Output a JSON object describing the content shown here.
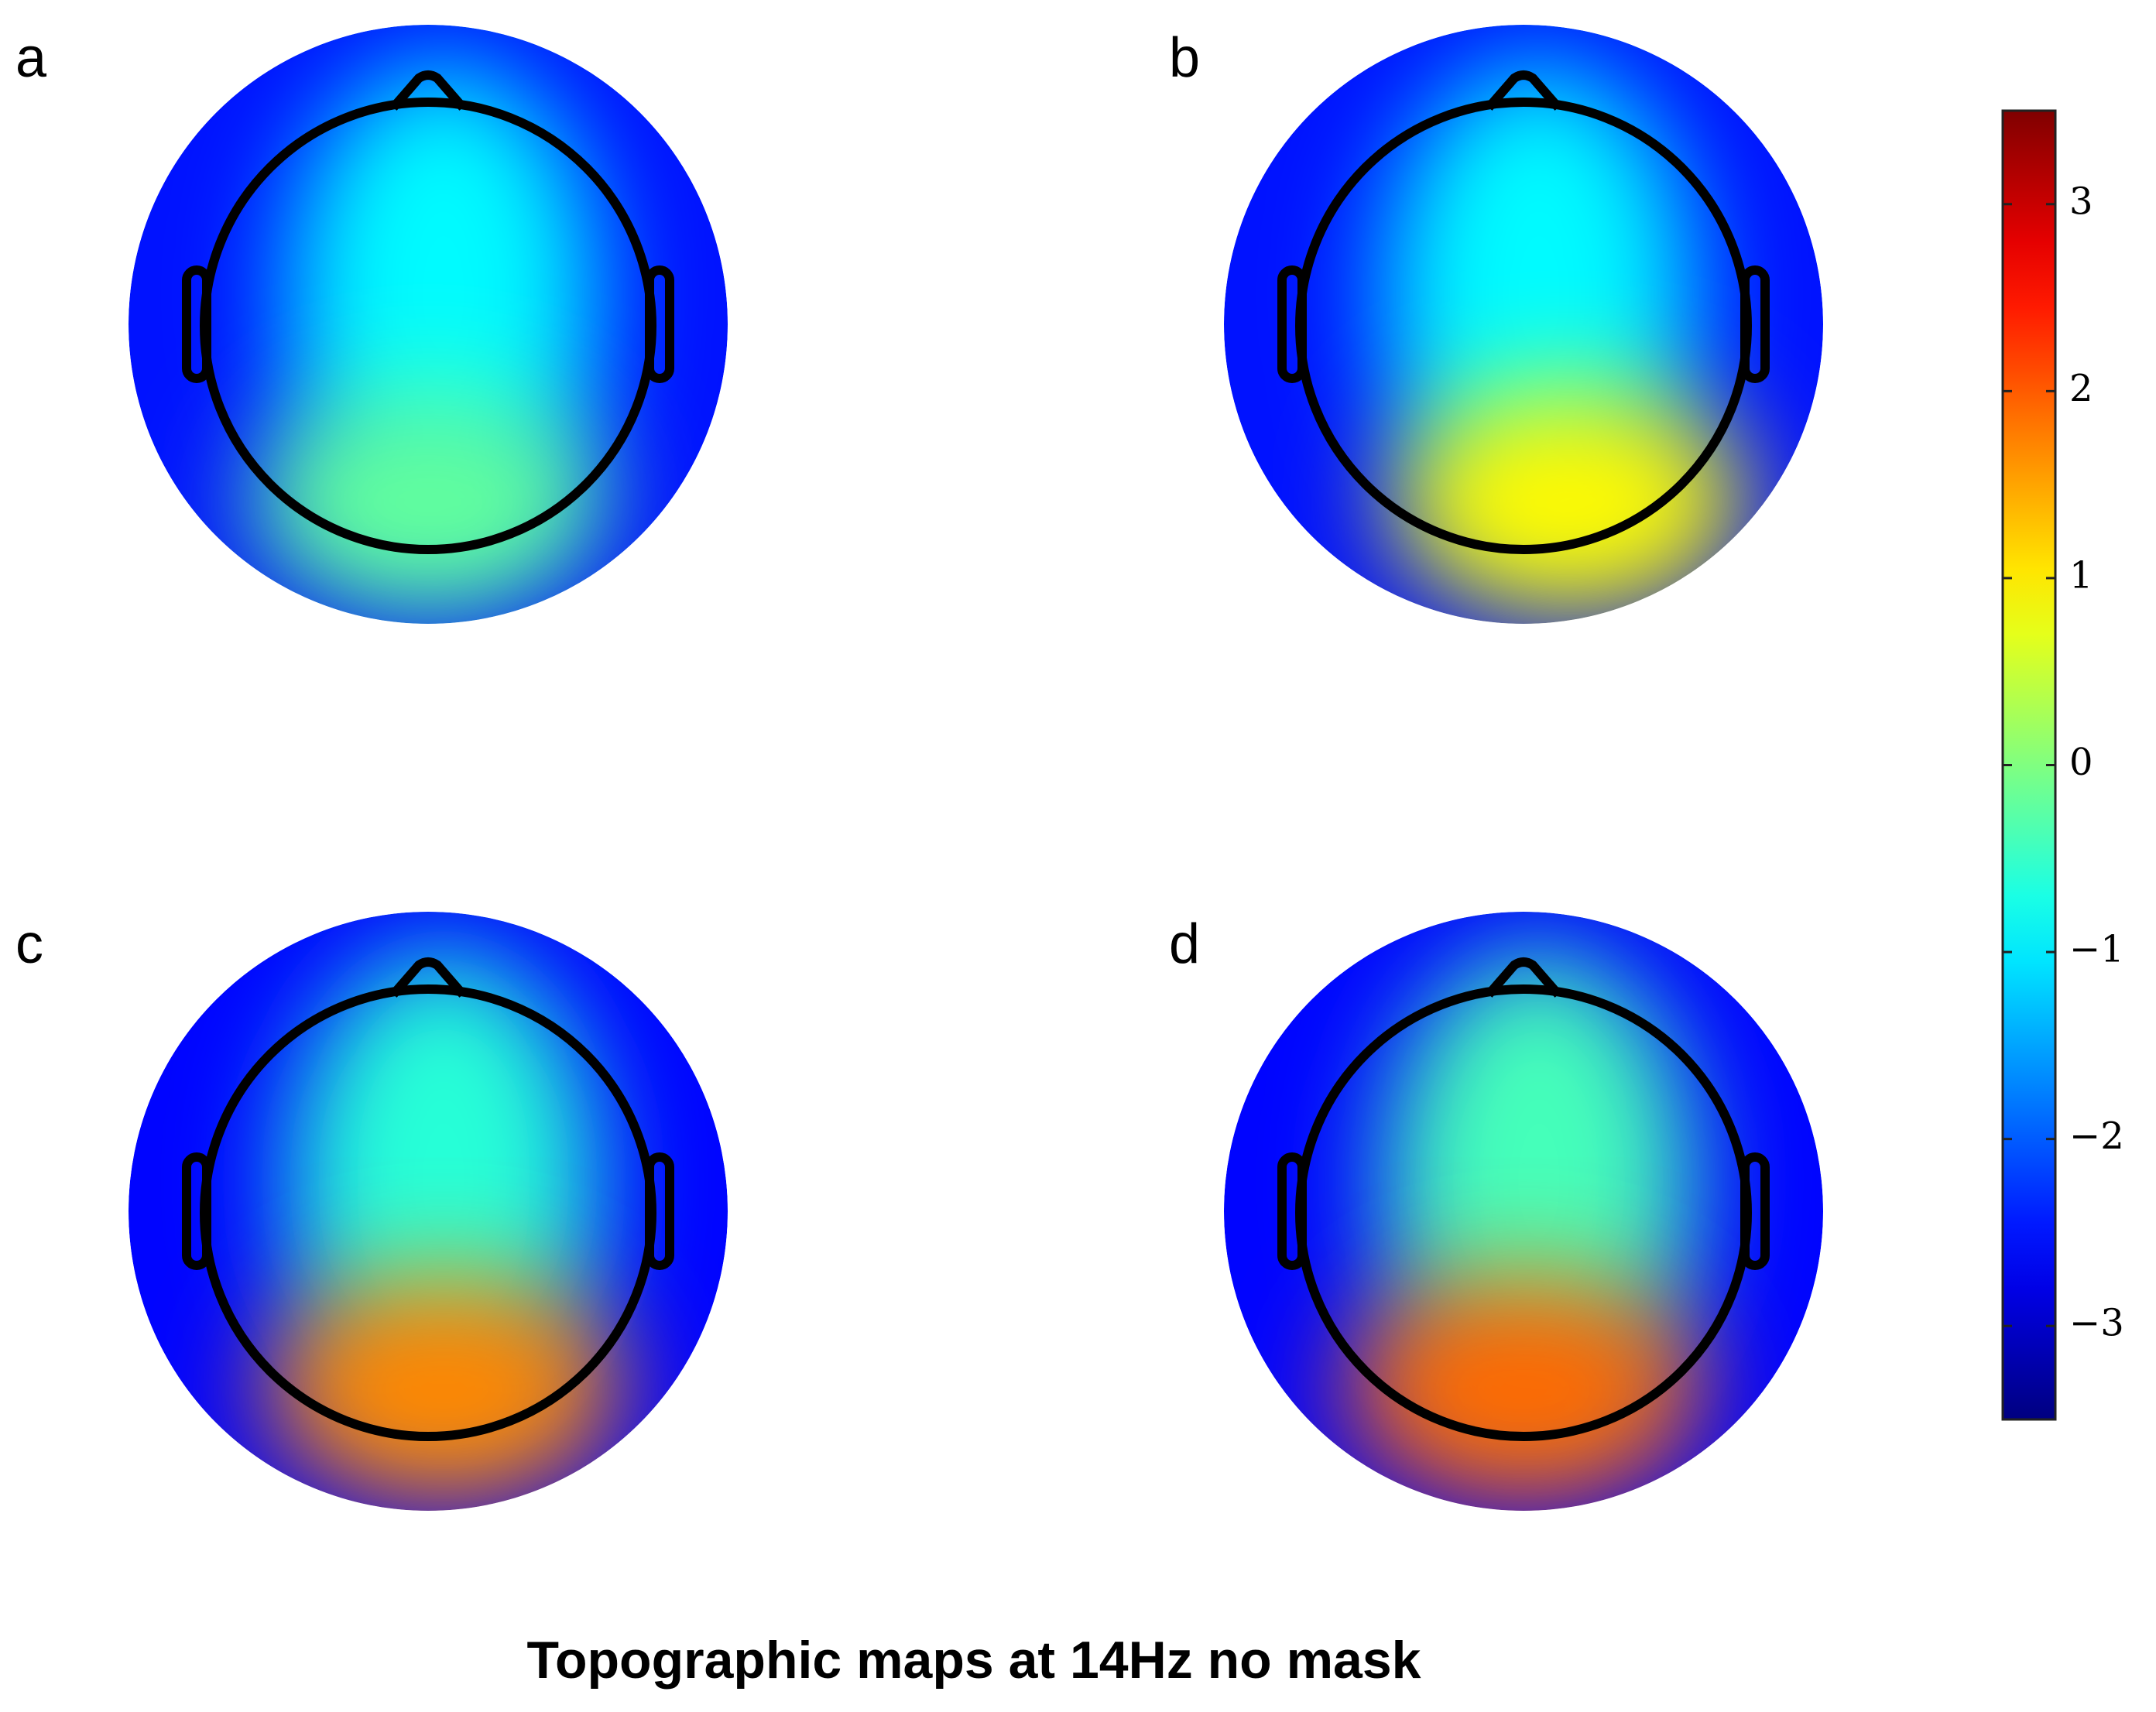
{
  "chart_data": {
    "type": "topomap",
    "title": "Topographic maps at 14Hz no mask",
    "panels": [
      {
        "label": "a",
        "occipital": -0.2,
        "central": -0.9,
        "edge": -2.5
      },
      {
        "label": "b",
        "occipital": 0.9,
        "central": -0.9,
        "edge": -2.5
      },
      {
        "label": "c",
        "occipital": 1.7,
        "central": -0.6,
        "edge": -2.6
      },
      {
        "label": "d",
        "occipital": 1.9,
        "central": -0.4,
        "edge": -2.6
      }
    ],
    "colorbar": {
      "lim": [
        -3.5,
        3.5
      ],
      "ticks": [
        {
          "value": -3,
          "label": "−3"
        },
        {
          "value": -2,
          "label": "−2"
        },
        {
          "value": -1,
          "label": "−1"
        },
        0,
        1,
        2,
        3
      ]
    }
  }
}
